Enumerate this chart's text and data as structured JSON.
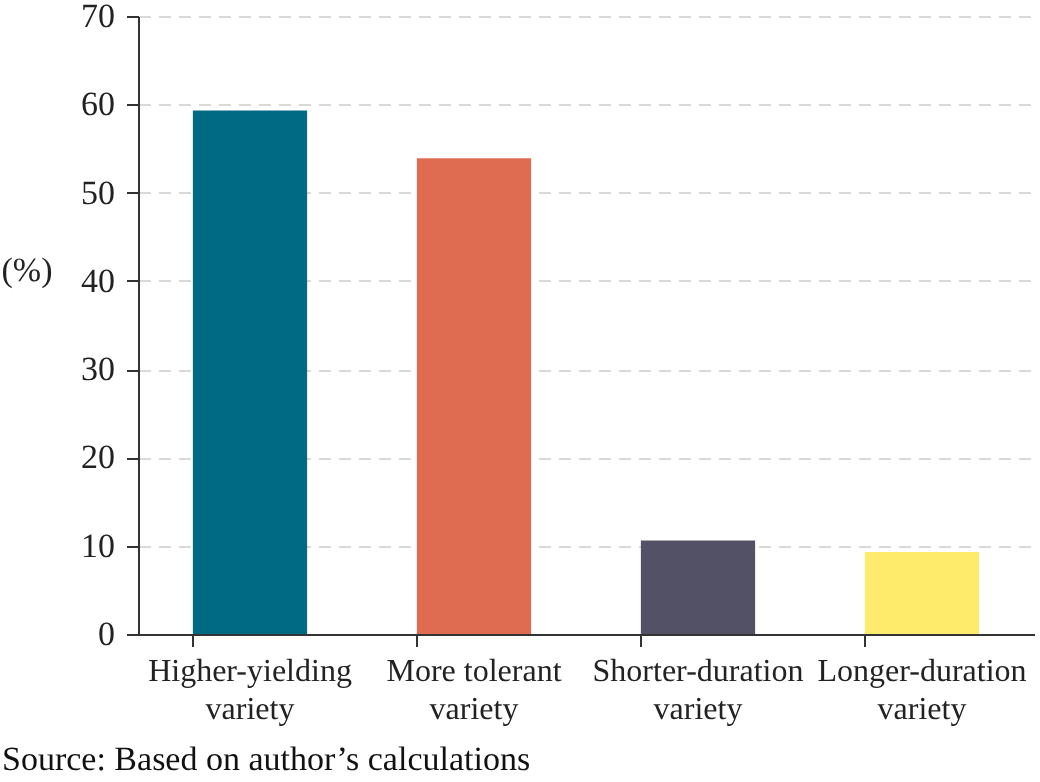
{
  "chart_data": {
    "type": "bar",
    "ylabel": "(%)",
    "categories": [
      "Higher-yielding variety",
      "More tolerant variety",
      "Shorter-duration variety",
      "Longer-duration variety"
    ],
    "values": [
      59.3,
      53.9,
      10.6,
      9.3
    ],
    "colors": [
      "#006a84",
      "#df6b50",
      "#535166",
      "#ffeb6b"
    ],
    "ylim": [
      0,
      70
    ],
    "yticks": [
      0,
      10,
      20,
      30,
      40,
      50,
      60,
      70
    ],
    "grid": "y",
    "annotations": [
      "Source: Based on author’s calculations"
    ]
  }
}
